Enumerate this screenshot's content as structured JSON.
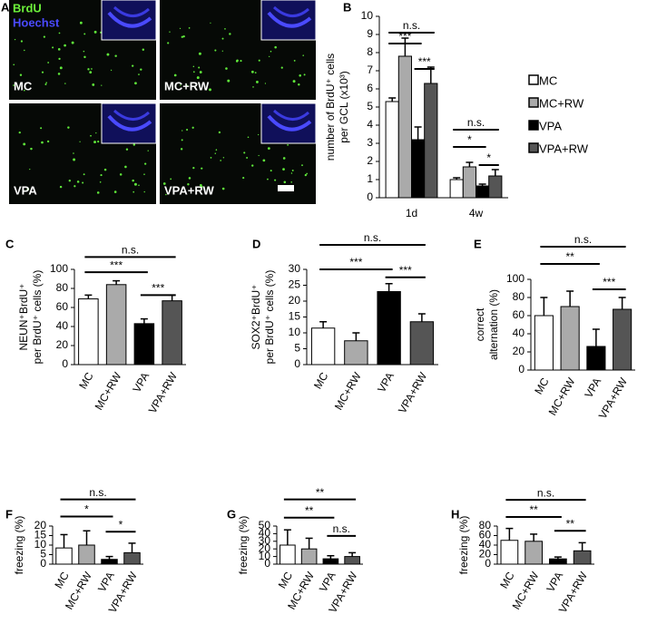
{
  "micrograph": {
    "panel": "A",
    "stains": [
      "BrdU",
      "Hoechst"
    ],
    "labels": [
      "MC",
      "MC+RW",
      "VPA",
      "VPA+RW"
    ]
  },
  "chart_data": [
    {
      "type": "bar",
      "panel": "B",
      "ylabel": [
        "number of BrdU⁺ cells",
        "per GCL (x10³)"
      ],
      "categories": [
        "1d",
        "4w"
      ],
      "series": [
        {
          "name": "MC",
          "color": "#ffffff",
          "values": [
            5.3,
            1.0
          ],
          "errors": [
            0.2,
            0.1
          ]
        },
        {
          "name": "MC+RW",
          "color": "#aaaaaa",
          "values": [
            7.8,
            1.7
          ],
          "errors": [
            1.0,
            0.25
          ]
        },
        {
          "name": "VPA",
          "color": "#000000",
          "values": [
            3.2,
            0.65
          ],
          "errors": [
            0.7,
            0.1
          ]
        },
        {
          "name": "VPA+RW",
          "color": "#555555",
          "values": [
            6.3,
            1.2
          ],
          "errors": [
            0.9,
            0.35
          ]
        }
      ],
      "ylim": [
        0,
        10
      ],
      "yticks": [
        0,
        1,
        2,
        3,
        4,
        5,
        6,
        7,
        8,
        9,
        10
      ],
      "annotations": [
        {
          "label": "n.s.",
          "group": 0,
          "from": 0,
          "to": 3,
          "y": 9.1
        },
        {
          "label": "***",
          "group": 0,
          "from": 0,
          "to": 2,
          "y": 8.5
        },
        {
          "label": "***",
          "group": 0,
          "from": 2,
          "to": 3,
          "y": 7.1
        },
        {
          "label": "n.s.",
          "group": 1,
          "from": 0,
          "to": 3,
          "y": 3.75
        },
        {
          "label": "*",
          "group": 1,
          "from": 0,
          "to": 2,
          "y": 2.8
        },
        {
          "label": "*",
          "group": 1,
          "from": 2,
          "to": 3,
          "y": 1.8
        }
      ]
    },
    {
      "type": "bar",
      "panel": "C",
      "ylabel": [
        "NEUN⁺BrdU⁺",
        "per BrdU⁺ cells (%)"
      ],
      "categories": [
        "MC",
        "MC+RW",
        "VPA",
        "VPA+RW"
      ],
      "colors": [
        "#ffffff",
        "#aaaaaa",
        "#000000",
        "#555555"
      ],
      "values": [
        69,
        84,
        43,
        67
      ],
      "errors": [
        4,
        4,
        5,
        6
      ],
      "ylim": [
        0,
        100
      ],
      "yticks": [
        0,
        20,
        40,
        60,
        80,
        100
      ],
      "annotations": [
        {
          "label": "n.s.",
          "from": 0,
          "to": 3,
          "y": 113
        },
        {
          "label": "***",
          "from": 0,
          "to": 2,
          "y": 97
        },
        {
          "label": "***",
          "from": 2,
          "to": 3,
          "y": 73
        }
      ]
    },
    {
      "type": "bar",
      "panel": "D",
      "ylabel": [
        "SOX2⁺BrdU⁺",
        "per BrdU⁺ cells (%)"
      ],
      "categories": [
        "MC",
        "MC+RW",
        "VPA",
        "VPA+RW"
      ],
      "colors": [
        "#ffffff",
        "#aaaaaa",
        "#000000",
        "#555555"
      ],
      "values": [
        11.5,
        7.5,
        23,
        13.5
      ],
      "errors": [
        2,
        2.5,
        2.5,
        2.5
      ],
      "ylim": [
        0,
        30
      ],
      "yticks": [
        0,
        5,
        10,
        15,
        20,
        25,
        30
      ],
      "annotations": [
        {
          "label": "n.s.",
          "from": 0,
          "to": 3,
          "y": 37.7
        },
        {
          "label": "***",
          "from": 0,
          "to": 2,
          "y": 30
        },
        {
          "label": "***",
          "from": 2,
          "to": 3,
          "y": 27.5
        }
      ]
    },
    {
      "type": "bar",
      "panel": "E",
      "ylabel": [
        "correct",
        "alternation (%)"
      ],
      "categories": [
        "MC",
        "MC+RW",
        "VPA",
        "VPA+RW"
      ],
      "colors": [
        "#ffffff",
        "#aaaaaa",
        "#000000",
        "#555555"
      ],
      "values": [
        60,
        70,
        26,
        67
      ],
      "errors": [
        20,
        17,
        19,
        13
      ],
      "ylim": [
        0,
        100
      ],
      "yticks": [
        0,
        20,
        40,
        60,
        80,
        100
      ],
      "annotations": [
        {
          "label": "n.s.",
          "from": 0,
          "to": 3,
          "y": 136
        },
        {
          "label": "**",
          "from": 0,
          "to": 2,
          "y": 117
        },
        {
          "label": "***",
          "from": 2,
          "to": 3,
          "y": 89
        }
      ]
    },
    {
      "type": "bar",
      "panel": "F",
      "ylabel": [
        "freezing (%)"
      ],
      "categories": [
        "MC",
        "MC+RW",
        "VPA",
        "VPA+RW"
      ],
      "colors": [
        "#ffffff",
        "#aaaaaa",
        "#000000",
        "#555555"
      ],
      "values": [
        8.5,
        10,
        2.5,
        6
      ],
      "errors": [
        7,
        7.5,
        1.5,
        5
      ],
      "ylim": [
        0,
        20
      ],
      "yticks": [
        0,
        5,
        10,
        15,
        20
      ],
      "annotations": [
        {
          "label": "n.s.",
          "from": 0,
          "to": 3,
          "y": 34
        },
        {
          "label": "*",
          "from": 0,
          "to": 2,
          "y": 25
        },
        {
          "label": "*",
          "from": 2,
          "to": 3,
          "y": 17
        }
      ]
    },
    {
      "type": "bar",
      "panel": "G",
      "ylabel": [
        "freezing (%)"
      ],
      "categories": [
        "MC",
        "MC+RW",
        "VPA",
        "VPA+RW"
      ],
      "colors": [
        "#ffffff",
        "#aaaaaa",
        "#000000",
        "#555555"
      ],
      "values": [
        25,
        20,
        7,
        10
      ],
      "errors": [
        20,
        14,
        4,
        5
      ],
      "ylim": [
        0,
        50
      ],
      "yticks": [
        0,
        10,
        20,
        30,
        40,
        50
      ],
      "annotations": [
        {
          "label": "**",
          "from": 0,
          "to": 3,
          "y": 85
        },
        {
          "label": "**",
          "from": 0,
          "to": 2,
          "y": 61
        },
        {
          "label": "n.s.",
          "from": 2,
          "to": 3,
          "y": 37
        }
      ]
    },
    {
      "type": "bar",
      "panel": "H",
      "ylabel": [
        "freezing (%)"
      ],
      "categories": [
        "MC",
        "MC+RW",
        "VPA",
        "VPA+RW"
      ],
      "colors": [
        "#ffffff",
        "#aaaaaa",
        "#000000",
        "#555555"
      ],
      "values": [
        50,
        48,
        11,
        28
      ],
      "errors": [
        25,
        15,
        4,
        17
      ],
      "ylim": [
        0,
        80
      ],
      "yticks": [
        0,
        20,
        40,
        60,
        80
      ],
      "annotations": [
        {
          "label": "n.s.",
          "from": 0,
          "to": 3,
          "y": 135
        },
        {
          "label": "**",
          "from": 0,
          "to": 2,
          "y": 99
        },
        {
          "label": "**",
          "from": 2,
          "to": 3,
          "y": 70
        }
      ]
    }
  ]
}
